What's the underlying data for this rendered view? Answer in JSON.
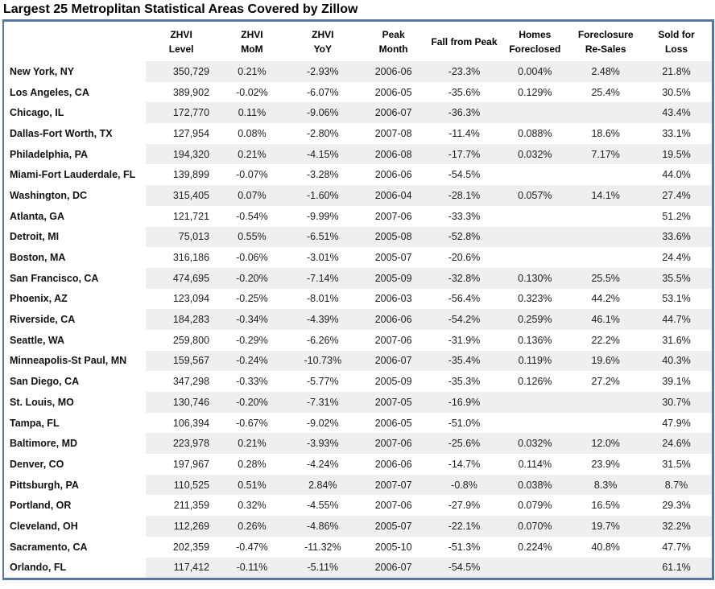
{
  "title": "Largest 25 Metroplitan Statistical Areas Covered by Zillow",
  "colors": {
    "border": "#5577a0",
    "stripe": "#efefef",
    "text": "#1c1c1c",
    "heading": "#000000"
  },
  "chart_data": {
    "type": "table",
    "title": "Largest 25 Metroplitan Statistical Areas Covered by Zillow",
    "columns": [
      {
        "line1": "ZHVI",
        "line2": "Level"
      },
      {
        "line1": "ZHVI",
        "line2": "MoM"
      },
      {
        "line1": "ZHVI",
        "line2": "YoY"
      },
      {
        "line1": "Peak",
        "line2": "Month"
      },
      {
        "line1": "Fall from Peak",
        "line2": ""
      },
      {
        "line1": "Homes",
        "line2": "Foreclosed"
      },
      {
        "line1": "Foreclosure",
        "line2": "Re-Sales"
      },
      {
        "line1": "Sold for",
        "line2": "Loss"
      }
    ],
    "rows": [
      {
        "city": "New York, NY",
        "level": "350,729",
        "mom": "0.21%",
        "yoy": "-2.93%",
        "peak": "2006-06",
        "fall": "-23.3%",
        "foreclosed": "0.004%",
        "resales": "2.48%",
        "loss": "21.8%"
      },
      {
        "city": "Los Angeles, CA",
        "level": "389,902",
        "mom": "-0.02%",
        "yoy": "-6.07%",
        "peak": "2006-05",
        "fall": "-35.6%",
        "foreclosed": "0.129%",
        "resales": "25.4%",
        "loss": "30.5%"
      },
      {
        "city": "Chicago, IL",
        "level": "172,770",
        "mom": "0.11%",
        "yoy": "-9.06%",
        "peak": "2006-07",
        "fall": "-36.3%",
        "foreclosed": "",
        "resales": "",
        "loss": "43.4%"
      },
      {
        "city": "Dallas-Fort Worth, TX",
        "level": "127,954",
        "mom": "0.08%",
        "yoy": "-2.80%",
        "peak": "2007-08",
        "fall": "-11.4%",
        "foreclosed": "0.088%",
        "resales": "18.6%",
        "loss": "33.1%"
      },
      {
        "city": "Philadelphia, PA",
        "level": "194,320",
        "mom": "0.21%",
        "yoy": "-4.15%",
        "peak": "2006-08",
        "fall": "-17.7%",
        "foreclosed": "0.032%",
        "resales": "7.17%",
        "loss": "19.5%"
      },
      {
        "city": "Miami-Fort Lauderdale, FL",
        "level": "139,899",
        "mom": "-0.07%",
        "yoy": "-3.28%",
        "peak": "2006-06",
        "fall": "-54.5%",
        "foreclosed": "",
        "resales": "",
        "loss": "44.0%"
      },
      {
        "city": "Washington, DC",
        "level": "315,405",
        "mom": "0.07%",
        "yoy": "-1.60%",
        "peak": "2006-04",
        "fall": "-28.1%",
        "foreclosed": "0.057%",
        "resales": "14.1%",
        "loss": "27.4%"
      },
      {
        "city": "Atlanta, GA",
        "level": "121,721",
        "mom": "-0.54%",
        "yoy": "-9.99%",
        "peak": "2007-06",
        "fall": "-33.3%",
        "foreclosed": "",
        "resales": "",
        "loss": "51.2%"
      },
      {
        "city": "Detroit, MI",
        "level": "75,013",
        "mom": "0.55%",
        "yoy": "-6.51%",
        "peak": "2005-08",
        "fall": "-52.8%",
        "foreclosed": "",
        "resales": "",
        "loss": "33.6%"
      },
      {
        "city": "Boston, MA",
        "level": "316,186",
        "mom": "-0.06%",
        "yoy": "-3.01%",
        "peak": "2005-07",
        "fall": "-20.6%",
        "foreclosed": "",
        "resales": "",
        "loss": "24.4%"
      },
      {
        "city": "San Francisco, CA",
        "level": "474,695",
        "mom": "-0.20%",
        "yoy": "-7.14%",
        "peak": "2005-09",
        "fall": "-32.8%",
        "foreclosed": "0.130%",
        "resales": "25.5%",
        "loss": "35.5%"
      },
      {
        "city": "Phoenix, AZ",
        "level": "123,094",
        "mom": "-0.25%",
        "yoy": "-8.01%",
        "peak": "2006-03",
        "fall": "-56.4%",
        "foreclosed": "0.323%",
        "resales": "44.2%",
        "loss": "53.1%"
      },
      {
        "city": "Riverside, CA",
        "level": "184,283",
        "mom": "-0.34%",
        "yoy": "-4.39%",
        "peak": "2006-06",
        "fall": "-54.2%",
        "foreclosed": "0.259%",
        "resales": "46.1%",
        "loss": "44.7%"
      },
      {
        "city": "Seattle, WA",
        "level": "259,800",
        "mom": "-0.29%",
        "yoy": "-6.26%",
        "peak": "2007-06",
        "fall": "-31.9%",
        "foreclosed": "0.136%",
        "resales": "22.2%",
        "loss": "31.6%"
      },
      {
        "city": "Minneapolis-St Paul, MN",
        "level": "159,567",
        "mom": "-0.24%",
        "yoy": "-10.73%",
        "peak": "2006-07",
        "fall": "-35.4%",
        "foreclosed": "0.119%",
        "resales": "19.6%",
        "loss": "40.3%"
      },
      {
        "city": "San Diego, CA",
        "level": "347,298",
        "mom": "-0.33%",
        "yoy": "-5.77%",
        "peak": "2005-09",
        "fall": "-35.3%",
        "foreclosed": "0.126%",
        "resales": "27.2%",
        "loss": "39.1%"
      },
      {
        "city": "St. Louis, MO",
        "level": "130,746",
        "mom": "-0.20%",
        "yoy": "-7.31%",
        "peak": "2007-05",
        "fall": "-16.9%",
        "foreclosed": "",
        "resales": "",
        "loss": "30.7%"
      },
      {
        "city": "Tampa, FL",
        "level": "106,394",
        "mom": "-0.67%",
        "yoy": "-9.02%",
        "peak": "2006-05",
        "fall": "-51.0%",
        "foreclosed": "",
        "resales": "",
        "loss": "47.9%"
      },
      {
        "city": "Baltimore, MD",
        "level": "223,978",
        "mom": "0.21%",
        "yoy": "-3.93%",
        "peak": "2007-06",
        "fall": "-25.6%",
        "foreclosed": "0.032%",
        "resales": "12.0%",
        "loss": "24.6%"
      },
      {
        "city": "Denver, CO",
        "level": "197,967",
        "mom": "0.28%",
        "yoy": "-4.24%",
        "peak": "2006-06",
        "fall": "-14.7%",
        "foreclosed": "0.114%",
        "resales": "23.9%",
        "loss": "31.5%"
      },
      {
        "city": "Pittsburgh, PA",
        "level": "110,525",
        "mom": "0.51%",
        "yoy": "2.84%",
        "peak": "2007-07",
        "fall": "-0.8%",
        "foreclosed": "0.038%",
        "resales": "8.3%",
        "loss": "8.7%"
      },
      {
        "city": "Portland, OR",
        "level": "211,359",
        "mom": "0.32%",
        "yoy": "-4.55%",
        "peak": "2007-06",
        "fall": "-27.9%",
        "foreclosed": "0.079%",
        "resales": "16.5%",
        "loss": "29.3%"
      },
      {
        "city": "Cleveland, OH",
        "level": "112,269",
        "mom": "0.26%",
        "yoy": "-4.86%",
        "peak": "2005-07",
        "fall": "-22.1%",
        "foreclosed": "0.070%",
        "resales": "19.7%",
        "loss": "32.2%"
      },
      {
        "city": "Sacramento, CA",
        "level": "202,359",
        "mom": "-0.47%",
        "yoy": "-11.32%",
        "peak": "2005-10",
        "fall": "-51.3%",
        "foreclosed": "0.224%",
        "resales": "40.8%",
        "loss": "47.7%"
      },
      {
        "city": "Orlando, FL",
        "level": "117,412",
        "mom": "-0.11%",
        "yoy": "-5.11%",
        "peak": "2006-07",
        "fall": "-54.5%",
        "foreclosed": "",
        "resales": "",
        "loss": "61.1%"
      }
    ]
  }
}
